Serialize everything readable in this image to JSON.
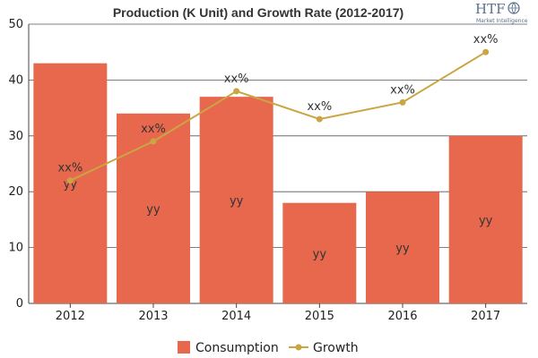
{
  "chart_data": {
    "type": "bar",
    "title": "Production (K Unit) and Growth Rate (2012-2017)",
    "categories": [
      "2012",
      "2013",
      "2014",
      "2015",
      "2016",
      "2017"
    ],
    "ylim": [
      0,
      50
    ],
    "yticks": [
      0,
      10,
      20,
      30,
      40,
      50
    ],
    "grid": true,
    "legend_position": "bottom-center",
    "series": [
      {
        "name": "Consumption",
        "kind": "bar",
        "color": "#e8684e",
        "values": [
          43,
          34,
          37,
          18,
          20,
          30
        ],
        "labels": [
          "yy",
          "yy",
          "yy",
          "yy",
          "yy",
          "yy"
        ]
      },
      {
        "name": "Growth",
        "kind": "line",
        "color": "#c9a642",
        "values": [
          22,
          29,
          38,
          33,
          36,
          45
        ],
        "labels": [
          "xx%",
          "xx%",
          "xx%",
          "xx%",
          "xx%",
          "xx%"
        ]
      }
    ]
  },
  "logo": {
    "text": "HTF",
    "subtitle": "Market Intelligence"
  }
}
